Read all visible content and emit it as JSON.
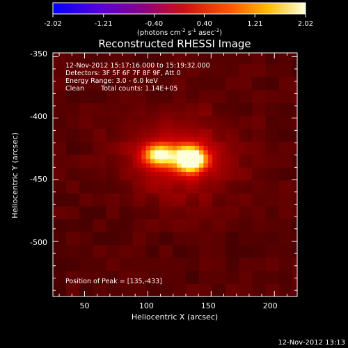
{
  "colorbar": {
    "ticks": [
      "-2.02",
      "-1.21",
      "-0.40",
      "0.40",
      "1.21",
      "2.02"
    ],
    "tick_values": [
      -2.02,
      -1.21,
      -0.4,
      0.4,
      1.21,
      2.02
    ],
    "range": [
      -2.02,
      2.02
    ],
    "unit_main": "(photons cm",
    "unit_sup1": "-2",
    "unit_mid": " s",
    "unit_sup2": "-1",
    "unit_mid2": " asec",
    "unit_sup3": "-2",
    "unit_close": ")",
    "colors": [
      "#0000ff",
      "#6600cc",
      "#990066",
      "#cc0000",
      "#ff6600",
      "#ffcc00",
      "#ffffcc"
    ]
  },
  "chart_data": {
    "type": "heatmap",
    "title": "Reconstructed RHESSI Image",
    "xlabel": "Heliocentric X (arcsec)",
    "ylabel": "Heliocentric Y (arcsec)",
    "xlim": [
      25,
      218
    ],
    "ylim": [
      -545,
      -347
    ],
    "xticks": [
      50,
      100,
      150,
      200
    ],
    "yticks": [
      -350,
      -400,
      -450,
      -500
    ],
    "peak": [
      135,
      -433
    ],
    "sources": [
      {
        "x": 133,
        "y": -433,
        "amplitude": 2.02,
        "sigma_x": 9,
        "sigma_y": 7
      },
      {
        "x": 108,
        "y": -430,
        "amplitude": 1.3,
        "sigma_x": 8,
        "sigma_y": 6
      }
    ],
    "background_level": 0.28,
    "annotations": {
      "time_range": "12-Nov-2012 15:17:16.000 to 15:19:32.000",
      "detectors": "Detectors: 3F 5F 6F 7F 8F 9F, Att 0",
      "energy": "Energy Range: 3.0 - 6.0 keV",
      "method": "Clean",
      "counts": "Total counts: 1.14E+05",
      "peak_text": "Position of Peak = [135,-433]"
    }
  },
  "footer": {
    "timestamp": "12-Nov-2012 13:13"
  }
}
